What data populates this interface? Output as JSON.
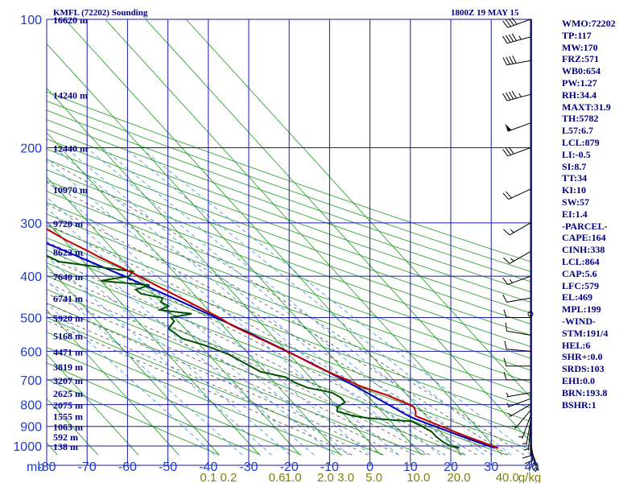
{
  "header": {
    "station": "KMFL (72202) Sounding",
    "time": "1800Z 19 MAY 15"
  },
  "colors": {
    "grid": "#1a1aa8",
    "dry_adiabat": "#1a9a1a",
    "moist_adiabat": "#555555",
    "mixing_ratio": "#3a8fe0",
    "temperature": "#c00000",
    "dewpoint": "#005000",
    "parcel": "#0000c0",
    "axis_label": "#1e3cc8",
    "mixing_label": "#808000",
    "panel_text": "#000080"
  },
  "chart_data": {
    "type": "skew-t log-p",
    "pressure_levels": [
      100,
      200,
      300,
      400,
      500,
      600,
      700,
      800,
      900,
      1000
    ],
    "pressure_unit": "mb",
    "temperature_ticks": [
      -80,
      -70,
      -60,
      -50,
      -40,
      -30,
      -20,
      -10,
      0,
      10,
      20,
      30,
      40
    ],
    "mixing_ratio_labels": [
      "0.1",
      "0.2",
      "0.6",
      "1.0",
      "2.0",
      "3.0",
      "5.0",
      "10.0",
      "20.0",
      "40.0"
    ],
    "mixing_ratio_unit": "g/kg",
    "height_labels": [
      {
        "p": 100,
        "label": "16620 m"
      },
      {
        "p": 150,
        "label": "14240 m"
      },
      {
        "p": 200,
        "label": "12440 m"
      },
      {
        "p": 250,
        "label": "10970 m"
      },
      {
        "p": 300,
        "label": "9720 m"
      },
      {
        "p": 350,
        "label": "8622 m"
      },
      {
        "p": 400,
        "label": "7640 m"
      },
      {
        "p": 450,
        "label": "6741 m"
      },
      {
        "p": 500,
        "label": "5920 m"
      },
      {
        "p": 550,
        "label": "5168 m"
      },
      {
        "p": 600,
        "label": "4471 m"
      },
      {
        "p": 650,
        "label": "3819 m"
      },
      {
        "p": 700,
        "label": "3207 m"
      },
      {
        "p": 750,
        "label": "2625 m"
      },
      {
        "p": 800,
        "label": "2075 m"
      },
      {
        "p": 850,
        "label": "1555 m"
      },
      {
        "p": 900,
        "label": "1063 m"
      },
      {
        "p": 950,
        "label": "592 m"
      },
      {
        "p": 1000,
        "label": "138 m"
      }
    ],
    "temperature_profile": [
      [
        1011,
        30.6
      ],
      [
        1000,
        29.6
      ],
      [
        975,
        27.6
      ],
      [
        950,
        25.4
      ],
      [
        925,
        23.4
      ],
      [
        900,
        21.4
      ],
      [
        880,
        19.8
      ],
      [
        860,
        18.2
      ],
      [
        850,
        17.4
      ],
      [
        830,
        18.4
      ],
      [
        810,
        19.0
      ],
      [
        800,
        18.4
      ],
      [
        780,
        16.8
      ],
      [
        760,
        15.0
      ],
      [
        740,
        12.4
      ],
      [
        720,
        10.0
      ],
      [
        700,
        8.6
      ],
      [
        680,
        6.6
      ],
      [
        650,
        4.0
      ],
      [
        620,
        1.8
      ],
      [
        600,
        0.0
      ],
      [
        580,
        -1.8
      ],
      [
        560,
        -3.8
      ],
      [
        540,
        -5.8
      ],
      [
        520,
        -7.8
      ],
      [
        500,
        -9.0
      ],
      [
        480,
        -11.0
      ],
      [
        460,
        -13.0
      ],
      [
        440,
        -15.2
      ],
      [
        420,
        -17.4
      ],
      [
        400,
        -19.6
      ],
      [
        380,
        -22.2
      ],
      [
        360,
        -25.2
      ],
      [
        350,
        -26.4
      ],
      [
        330,
        -29.4
      ],
      [
        300,
        -33.0
      ],
      [
        280,
        -36.6
      ],
      [
        260,
        -40.6
      ],
      [
        250,
        -42.8
      ],
      [
        230,
        -47.0
      ],
      [
        220,
        -49.4
      ],
      [
        200,
        -54.0
      ],
      [
        180,
        -58.6
      ],
      [
        160,
        -63.6
      ],
      [
        150,
        -66.2
      ],
      [
        140,
        -68.8
      ],
      [
        130,
        -71.4
      ],
      [
        120,
        -75.8
      ],
      [
        112,
        -80.2
      ],
      [
        100,
        -80.2
      ]
    ],
    "dewpoint_profile": [
      [
        1011,
        21.0
      ],
      [
        1000,
        19.2
      ],
      [
        975,
        18.2
      ],
      [
        950,
        17.8
      ],
      [
        925,
        17.8
      ],
      [
        900,
        16.6
      ],
      [
        875,
        15.2
      ],
      [
        870,
        11.0
      ],
      [
        860,
        5.0
      ],
      [
        850,
        2.0
      ],
      [
        830,
        -1.0
      ],
      [
        810,
        0.0
      ],
      [
        790,
        3.0
      ],
      [
        770,
        3.0
      ],
      [
        750,
        2.0
      ],
      [
        730,
        -3.0
      ],
      [
        710,
        -5.0
      ],
      [
        690,
        -6.0
      ],
      [
        670,
        -11.0
      ],
      [
        640,
        -13.0
      ],
      [
        610,
        -15.0
      ],
      [
        580,
        -19.0
      ],
      [
        560,
        -23.0
      ],
      [
        530,
        -24.0
      ],
      [
        510,
        -21.0
      ],
      [
        500,
        -21.0
      ],
      [
        490,
        -15.0
      ],
      [
        480,
        -22.0
      ],
      [
        470,
        -19.0
      ],
      [
        460,
        -20.0
      ],
      [
        450,
        -18.6
      ],
      [
        440,
        -23.0
      ],
      [
        430,
        -23.4
      ],
      [
        420,
        -19.0
      ],
      [
        410,
        -30.0
      ],
      [
        400,
        -22.0
      ],
      [
        390,
        -20.0
      ],
      [
        380,
        -28.0
      ],
      [
        370,
        -36.0
      ],
      [
        350,
        -39.0
      ],
      [
        340,
        -44.0
      ],
      [
        320,
        -50.0
      ],
      [
        300,
        -50.0
      ],
      [
        280,
        -53.0
      ],
      [
        260,
        -53.0
      ],
      [
        245,
        -59.0
      ],
      [
        230,
        -64.0
      ],
      [
        215,
        -68.0
      ],
      [
        200,
        -71.0
      ],
      [
        180,
        -75.0
      ],
      [
        160,
        -79.0
      ],
      [
        150,
        -81.0
      ],
      [
        140,
        -84.0
      ]
    ],
    "parcel_profile": [
      [
        1011,
        29.8
      ],
      [
        1000,
        28.6
      ],
      [
        950,
        24.2
      ],
      [
        900,
        19.8
      ],
      [
        880,
        18.0
      ],
      [
        864,
        16.6
      ],
      [
        850,
        15.6
      ],
      [
        800,
        13.2
      ],
      [
        750,
        10.6
      ],
      [
        700,
        7.6
      ],
      [
        650,
        4.2
      ],
      [
        600,
        0.2
      ],
      [
        550,
        -4.4
      ],
      [
        500,
        -9.8
      ],
      [
        450,
        -16.0
      ],
      [
        400,
        -23.2
      ],
      [
        350,
        -32.0
      ],
      [
        300,
        -42.4
      ],
      [
        250,
        -54.8
      ],
      [
        200,
        -70.0
      ],
      [
        150,
        -88.0
      ]
    ],
    "wind_barbs": [
      {
        "p": 1011,
        "dir": 160,
        "spd": 5
      },
      {
        "p": 1000,
        "dir": 165,
        "spd": 5
      },
      {
        "p": 975,
        "dir": 170,
        "spd": 10
      },
      {
        "p": 950,
        "dir": 175,
        "spd": 10
      },
      {
        "p": 925,
        "dir": 180,
        "spd": 10
      },
      {
        "p": 900,
        "dir": 185,
        "spd": 5
      },
      {
        "p": 875,
        "dir": 190,
        "spd": 5
      },
      {
        "p": 850,
        "dir": 200,
        "spd": 5
      },
      {
        "p": 825,
        "dir": 220,
        "spd": 5
      },
      {
        "p": 800,
        "dir": 240,
        "spd": 5
      },
      {
        "p": 775,
        "dir": 250,
        "spd": 5
      },
      {
        "p": 750,
        "dir": 260,
        "spd": 5
      },
      {
        "p": 700,
        "dir": 270,
        "spd": 10
      },
      {
        "p": 650,
        "dir": 270,
        "spd": 10
      },
      {
        "p": 600,
        "dir": 275,
        "spd": 10
      },
      {
        "p": 550,
        "dir": 280,
        "spd": 10
      },
      {
        "p": 500,
        "dir": 270,
        "spd": 10
      },
      {
        "p": 450,
        "dir": 260,
        "spd": 10
      },
      {
        "p": 400,
        "dir": 250,
        "spd": 15
      },
      {
        "p": 350,
        "dir": 240,
        "spd": 15
      },
      {
        "p": 300,
        "dir": 240,
        "spd": 15
      },
      {
        "p": 250,
        "dir": 245,
        "spd": 20
      },
      {
        "p": 200,
        "dir": 250,
        "spd": 30
      },
      {
        "p": 175,
        "dir": 250,
        "spd": 50
      },
      {
        "p": 150,
        "dir": 255,
        "spd": 45
      },
      {
        "p": 125,
        "dir": 260,
        "spd": 40
      },
      {
        "p": 110,
        "dir": 255,
        "spd": 45
      },
      {
        "p": 100,
        "dir": 250,
        "spd": 40
      }
    ]
  },
  "indices": [
    "WMO:72202",
    "TP:117",
    "MW:170",
    "FRZ:571",
    "WB0:654",
    "PW:1.27",
    "RH:34.4",
    "MAXT:31.9",
    "TH:5782",
    "L57:6.7",
    "LCL:879",
    "LI:-0.5",
    "SI:8.7",
    "TT:34",
    "KI:10",
    "SW:57",
    "EI:1.4",
    "-PARCEL-",
    "CAPE:164",
    "CINH:338",
    "LCL:864",
    "CAP:5.6",
    "LFC:579",
    "EL:469",
    "MPL:199",
    "-WIND-",
    "STM:191/4",
    "HEL:6",
    "SHR+:0.0",
    "SRDS:103",
    "EHI:0.0",
    "BRN:193.8",
    "BSHR:1"
  ]
}
